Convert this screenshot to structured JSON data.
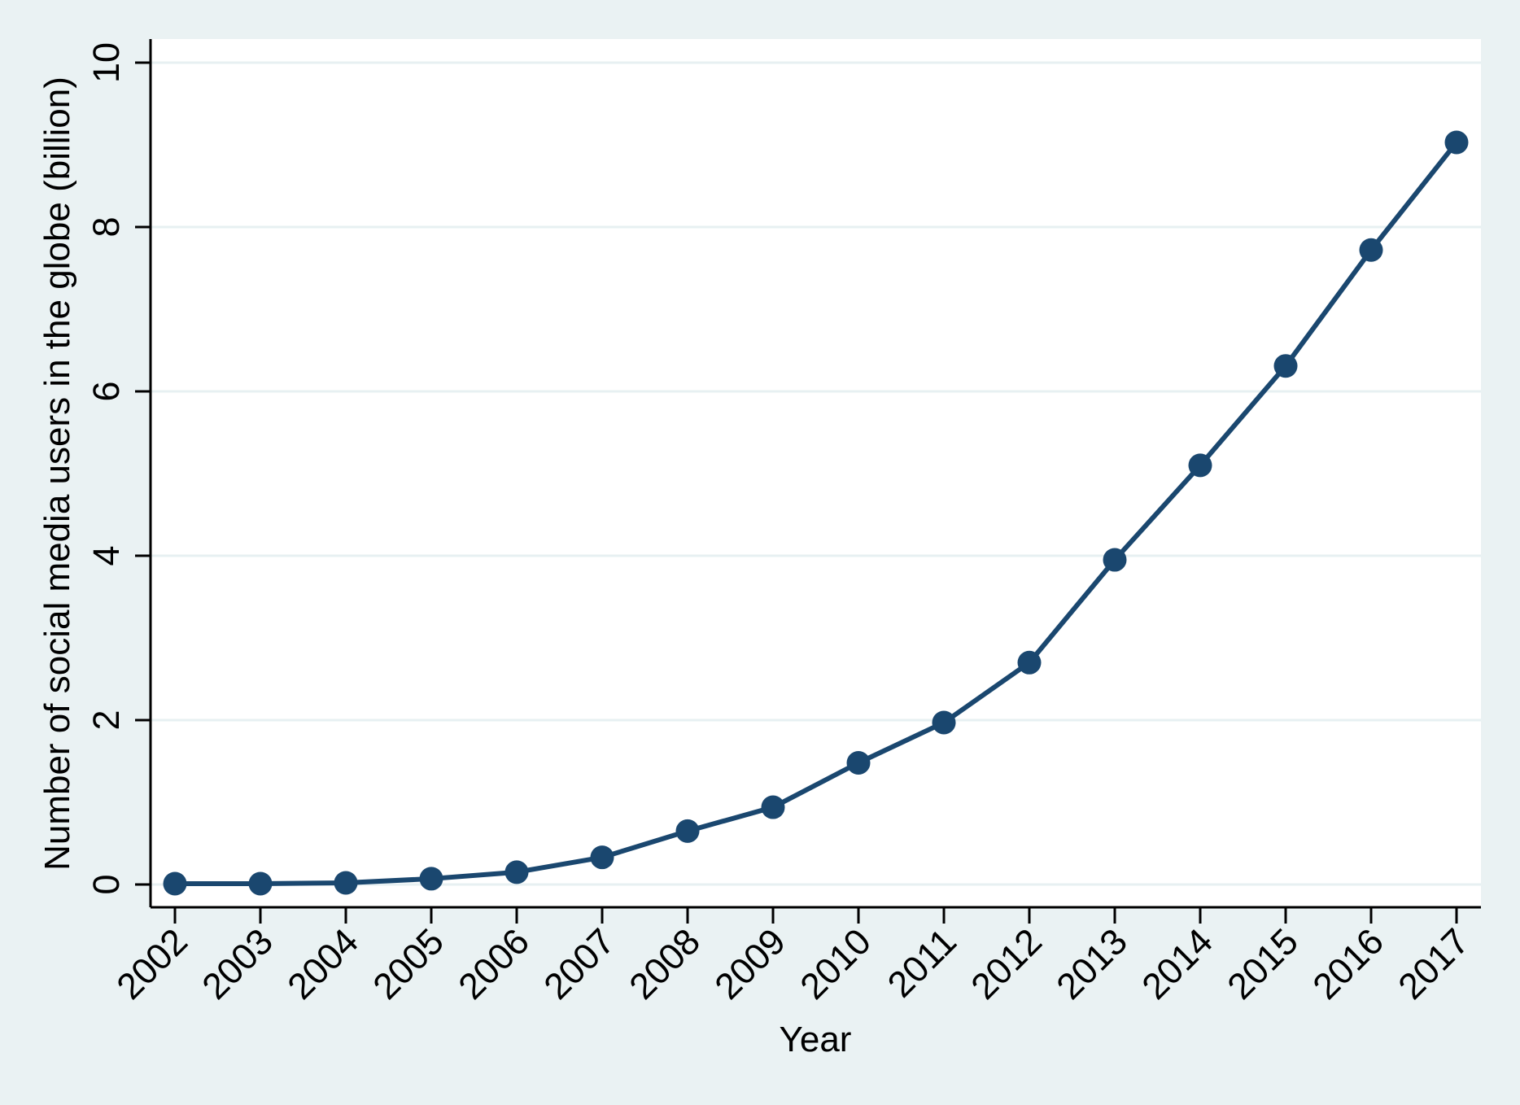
{
  "figure": {
    "background_color": "#eaf2f3",
    "plot_background_color": "#ffffff"
  },
  "chart_data": {
    "type": "line",
    "title": "",
    "xlabel": "Year",
    "ylabel": "Number of social media users in the globe (billion)",
    "x": [
      2002,
      2003,
      2004,
      2005,
      2006,
      2007,
      2008,
      2009,
      2010,
      2011,
      2012,
      2013,
      2014,
      2015,
      2016,
      2017
    ],
    "xtick_labels": [
      "2002",
      "2003",
      "2004",
      "2005",
      "2006",
      "2007",
      "2008",
      "2009",
      "2010",
      "2011",
      "2012",
      "2013",
      "2014",
      "2015",
      "2016",
      "2017"
    ],
    "values": [
      0.01,
      0.01,
      0.02,
      0.07,
      0.15,
      0.33,
      0.65,
      0.94,
      1.48,
      1.97,
      2.7,
      3.95,
      5.1,
      6.31,
      7.72,
      9.03
    ],
    "ylim": [
      0,
      10
    ],
    "yticks": [
      0,
      2,
      4,
      6,
      8,
      10
    ],
    "ytick_labels": [
      "0",
      "2",
      "4",
      "6",
      "8",
      "10"
    ],
    "grid": "horizontal",
    "legend": "none",
    "marker": "circle",
    "x_tick_label_angle": 45,
    "y_tick_label_angle": 90,
    "line_color": "#1a476f",
    "gridline_color": "#e7f0f2",
    "axis_color": "#000000",
    "background_color": "#eaf2f3",
    "plot_background_color": "#ffffff"
  }
}
